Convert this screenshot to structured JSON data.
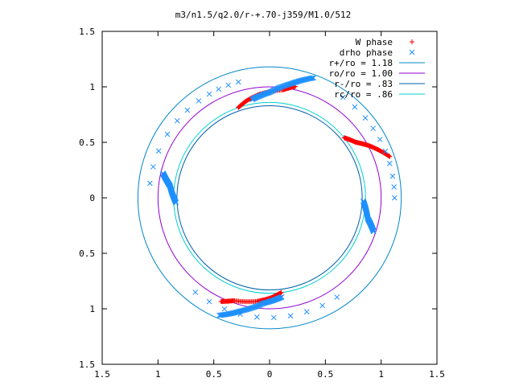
{
  "chart_data": {
    "type": "scatter",
    "title": "m3/n1.5/q2.0/r-+.70-j359/M1.0/512",
    "xlim": [
      -1.5,
      1.5
    ],
    "ylim": [
      -1.5,
      1.5
    ],
    "x_ticks": [
      -1.5,
      -1,
      -0.5,
      0,
      0.5,
      1,
      1.5
    ],
    "y_ticks": [
      -1.5,
      -1,
      -0.5,
      0,
      0.5,
      1,
      1.5
    ],
    "x_tick_labels": [
      "1.5",
      "1",
      "0.5",
      "0",
      "0.5",
      "1",
      "1.5"
    ],
    "y_tick_labels": [
      "1.5",
      "1",
      "0.5",
      "0",
      "0.5",
      "1",
      "1.5"
    ],
    "grid": false,
    "legend_position": "top-right",
    "legend": [
      {
        "label": "W phase",
        "kind": "marker",
        "marker": "plus",
        "color": "#ff0000"
      },
      {
        "label": "drho phase",
        "kind": "marker",
        "marker": "x",
        "color": "#1e90ff"
      },
      {
        "label": "r+/ro = 1.18",
        "kind": "line",
        "color": "#0087c8"
      },
      {
        "label": "ro/ro = 1.00",
        "kind": "line",
        "color": "#9400d3"
      },
      {
        "label": "r-/ro = .83",
        "kind": "line",
        "color": "#0060ad"
      },
      {
        "label": "rc/ro = .86",
        "kind": "line",
        "color": "#00d0d0"
      }
    ],
    "circles": [
      {
        "name": "r+/ro",
        "radius": 1.18,
        "color": "#0087c8"
      },
      {
        "name": "ro/ro",
        "radius": 1.0,
        "color": "#9400d3"
      },
      {
        "name": "r-/ro",
        "radius": 0.83,
        "color": "#0060ad"
      },
      {
        "name": "rc/ro",
        "radius": 0.86,
        "color": "#00d0d0"
      }
    ],
    "series": [
      {
        "name": "W phase",
        "marker": "plus",
        "color": "#ff0000",
        "arms": [
          {
            "base_angle_deg": 77,
            "spiral": [
              [
                1.03,
                0
              ],
              [
                0.98,
                6
              ],
              [
                0.94,
                18
              ],
              [
                0.9,
                26
              ],
              [
                0.86,
                32
              ]
            ]
          },
          {
            "base_angle_deg": -115,
            "spiral": [
              [
                1.03,
                0
              ],
              [
                0.98,
                6
              ],
              [
                0.94,
                18
              ],
              [
                0.9,
                26
              ],
              [
                0.86,
                32
              ]
            ]
          },
          {
            "base_angle_deg": 19,
            "spiral": [
              [
                1.14,
                0
              ],
              [
                1.02,
                8
              ],
              [
                0.92,
                14
              ],
              [
                0.86,
                20
              ]
            ]
          }
        ]
      },
      {
        "name": "drho phase",
        "marker": "x",
        "color": "#1e90ff",
        "arms": [
          {
            "base_angle_deg": 70,
            "spiral": [
              [
                1.15,
                0
              ],
              [
                1.05,
                9
              ],
              [
                0.95,
                20
              ],
              [
                0.9,
                30
              ]
            ]
          },
          {
            "base_angle_deg": -113,
            "spiral": [
              [
                1.15,
                0
              ],
              [
                1.05,
                9
              ],
              [
                0.95,
                20
              ],
              [
                0.9,
                30
              ]
            ]
          },
          {
            "base_angle_deg": 167,
            "spiral": [
              [
                0.98,
                0
              ],
              [
                0.9,
                6
              ],
              [
                0.84,
                16
              ]
            ]
          },
          {
            "base_angle_deg": 342,
            "spiral": [
              [
                0.98,
                0
              ],
              [
                0.9,
                6
              ],
              [
                0.84,
                16
              ]
            ]
          }
        ],
        "sparse_points": [
          {
            "r": 1.08,
            "angles_deg": [
              105,
              110,
              115,
              120,
              126,
              133,
              140,
              148,
              157,
              165,
              173
            ]
          },
          {
            "r": 1.08,
            "angles_deg": [
              232,
              240,
              248,
              256,
              264,
              272,
              280,
              288,
              296,
              304
            ]
          },
          {
            "r": 1.12,
            "angles_deg": [
              0,
              5,
              10,
              16,
              22,
              28,
              34,
              40,
              47,
              54
            ]
          }
        ]
      }
    ]
  }
}
